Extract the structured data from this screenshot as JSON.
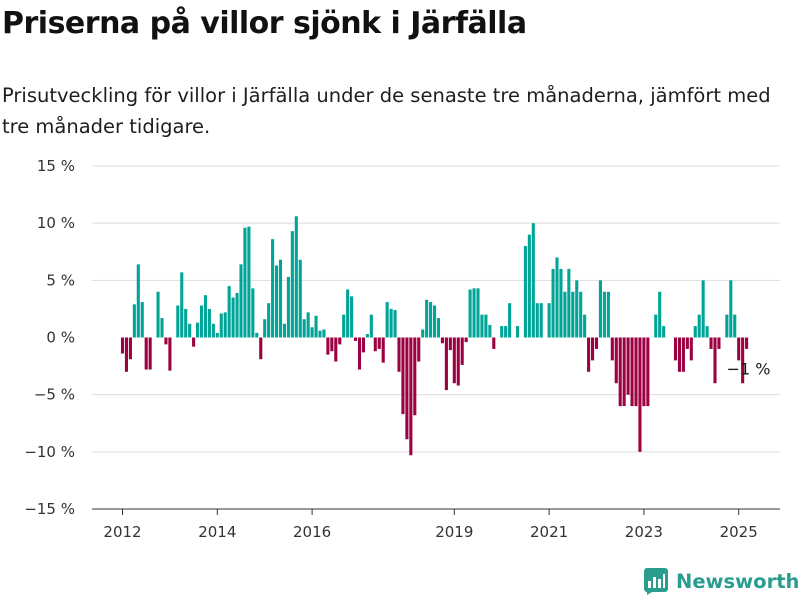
{
  "title": "Priserna på villor sjönk i Järfälla",
  "subtitle": "Prisutveckling för villor i Järfälla under de senaste tre månaderna, jämfört med tre månader tidigare.",
  "brand": {
    "name": "Newsworthy",
    "color": "#2a9d8f"
  },
  "colors": {
    "positive": "#00a597",
    "negative": "#9c0142",
    "grid": "#dddddd",
    "axis": "#333333"
  },
  "annotation": {
    "text": "−1 %"
  },
  "chart_data": {
    "type": "bar",
    "x_unit": "month",
    "ylim": [
      -15,
      15
    ],
    "y_ticks": [
      {
        "value": 15,
        "label": "15 %"
      },
      {
        "value": 10,
        "label": "10 %"
      },
      {
        "value": 5,
        "label": "5 %"
      },
      {
        "value": 0,
        "label": "0 %"
      },
      {
        "value": -5,
        "label": "−5 %"
      },
      {
        "value": -10,
        "label": "−10 %"
      },
      {
        "value": -15,
        "label": "−15 %"
      }
    ],
    "x_ticks": [
      {
        "value": "2012-01",
        "label": "2012"
      },
      {
        "value": "2014-01",
        "label": "2014"
      },
      {
        "value": "2016-01",
        "label": "2016"
      },
      {
        "value": "2019-01",
        "label": "2019"
      },
      {
        "value": "2021-01",
        "label": "2021"
      },
      {
        "value": "2023-01",
        "label": "2023"
      },
      {
        "value": "2025-01",
        "label": "2025"
      }
    ],
    "grid": true,
    "legend": false,
    "bars": [
      {
        "x": "2012-01",
        "y": -1.4
      },
      {
        "x": "2012-02",
        "y": -3
      },
      {
        "x": "2012-03",
        "y": -1.9
      },
      {
        "x": "2012-04",
        "y": 2.9
      },
      {
        "x": "2012-05",
        "y": 6.4
      },
      {
        "x": "2012-06",
        "y": 3.1
      },
      {
        "x": "2012-07",
        "y": -2.8
      },
      {
        "x": "2012-08",
        "y": -2.8
      },
      {
        "x": "2012-10",
        "y": 4
      },
      {
        "x": "2012-11",
        "y": 1.7
      },
      {
        "x": "2012-12",
        "y": -0.6
      },
      {
        "x": "2013-01",
        "y": -2.9
      },
      {
        "x": "2013-03",
        "y": 2.8
      },
      {
        "x": "2013-04",
        "y": 5.7
      },
      {
        "x": "2013-05",
        "y": 2.5
      },
      {
        "x": "2013-06",
        "y": 1.2
      },
      {
        "x": "2013-07",
        "y": -0.8
      },
      {
        "x": "2013-08",
        "y": 1.3
      },
      {
        "x": "2013-09",
        "y": 2.8
      },
      {
        "x": "2013-10",
        "y": 3.7
      },
      {
        "x": "2013-11",
        "y": 2.5
      },
      {
        "x": "2013-12",
        "y": 1.2
      },
      {
        "x": "2014-01",
        "y": 0.4
      },
      {
        "x": "2014-02",
        "y": 2.1
      },
      {
        "x": "2014-03",
        "y": 2.2
      },
      {
        "x": "2014-04",
        "y": 4.5
      },
      {
        "x": "2014-05",
        "y": 3.5
      },
      {
        "x": "2014-06",
        "y": 3.9
      },
      {
        "x": "2014-07",
        "y": 6.4
      },
      {
        "x": "2014-08",
        "y": 9.6
      },
      {
        "x": "2014-09",
        "y": 9.7
      },
      {
        "x": "2014-10",
        "y": 4.3
      },
      {
        "x": "2014-11",
        "y": 0.4
      },
      {
        "x": "2014-12",
        "y": -1.9
      },
      {
        "x": "2015-01",
        "y": 1.6
      },
      {
        "x": "2015-02",
        "y": 3
      },
      {
        "x": "2015-03",
        "y": 8.6
      },
      {
        "x": "2015-04",
        "y": 6.3
      },
      {
        "x": "2015-05",
        "y": 6.8
      },
      {
        "x": "2015-06",
        "y": 1.2
      },
      {
        "x": "2015-07",
        "y": 5.3
      },
      {
        "x": "2015-08",
        "y": 9.3
      },
      {
        "x": "2015-09",
        "y": 10.6
      },
      {
        "x": "2015-10",
        "y": 6.8
      },
      {
        "x": "2015-11",
        "y": 1.6
      },
      {
        "x": "2015-12",
        "y": 2.2
      },
      {
        "x": "2016-01",
        "y": 0.9
      },
      {
        "x": "2016-02",
        "y": 1.9
      },
      {
        "x": "2016-03",
        "y": 0.6
      },
      {
        "x": "2016-04",
        "y": 0.7
      },
      {
        "x": "2016-05",
        "y": -1.5
      },
      {
        "x": "2016-06",
        "y": -1.2
      },
      {
        "x": "2016-07",
        "y": -2.1
      },
      {
        "x": "2016-08",
        "y": -0.6
      },
      {
        "x": "2016-09",
        "y": 2
      },
      {
        "x": "2016-10",
        "y": 4.2
      },
      {
        "x": "2016-11",
        "y": 3.6
      },
      {
        "x": "2016-12",
        "y": -0.3
      },
      {
        "x": "2017-01",
        "y": -2.8
      },
      {
        "x": "2017-02",
        "y": -1.3
      },
      {
        "x": "2017-03",
        "y": 0.3
      },
      {
        "x": "2017-04",
        "y": 2
      },
      {
        "x": "2017-05",
        "y": -1.2
      },
      {
        "x": "2017-06",
        "y": -1
      },
      {
        "x": "2017-07",
        "y": -2.2
      },
      {
        "x": "2017-08",
        "y": 3.1
      },
      {
        "x": "2017-09",
        "y": 2.5
      },
      {
        "x": "2017-10",
        "y": 2.4
      },
      {
        "x": "2017-11",
        "y": -3
      },
      {
        "x": "2017-12",
        "y": -6.7
      },
      {
        "x": "2018-01",
        "y": -8.9
      },
      {
        "x": "2018-02",
        "y": -10.3
      },
      {
        "x": "2018-03",
        "y": -6.8
      },
      {
        "x": "2018-04",
        "y": -2.1
      },
      {
        "x": "2018-05",
        "y": 0.7
      },
      {
        "x": "2018-06",
        "y": 3.3
      },
      {
        "x": "2018-07",
        "y": 3.1
      },
      {
        "x": "2018-08",
        "y": 2.8
      },
      {
        "x": "2018-09",
        "y": 1.7
      },
      {
        "x": "2018-10",
        "y": -0.5
      },
      {
        "x": "2018-11",
        "y": -4.6
      },
      {
        "x": "2018-12",
        "y": -1.1
      },
      {
        "x": "2019-01",
        "y": -4
      },
      {
        "x": "2019-02",
        "y": -4.2
      },
      {
        "x": "2019-03",
        "y": -2.4
      },
      {
        "x": "2019-04",
        "y": -0.4
      },
      {
        "x": "2019-05",
        "y": 4.2
      },
      {
        "x": "2019-06",
        "y": 4.3
      },
      {
        "x": "2019-07",
        "y": 4.3
      },
      {
        "x": "2019-08",
        "y": 2
      },
      {
        "x": "2019-09",
        "y": 2
      },
      {
        "x": "2019-10",
        "y": 1.1
      },
      {
        "x": "2019-11",
        "y": -1
      },
      {
        "x": "2020-01",
        "y": 1
      },
      {
        "x": "2020-02",
        "y": 1
      },
      {
        "x": "2020-03",
        "y": 3
      },
      {
        "x": "2020-05",
        "y": 1
      },
      {
        "x": "2020-07",
        "y": 8
      },
      {
        "x": "2020-08",
        "y": 9
      },
      {
        "x": "2020-09",
        "y": 10
      },
      {
        "x": "2020-10",
        "y": 3
      },
      {
        "x": "2020-11",
        "y": 3
      },
      {
        "x": "2021-01",
        "y": 3
      },
      {
        "x": "2021-02",
        "y": 6
      },
      {
        "x": "2021-03",
        "y": 7
      },
      {
        "x": "2021-04",
        "y": 6
      },
      {
        "x": "2021-05",
        "y": 4
      },
      {
        "x": "2021-06",
        "y": 6
      },
      {
        "x": "2021-07",
        "y": 4
      },
      {
        "x": "2021-08",
        "y": 5
      },
      {
        "x": "2021-09",
        "y": 4
      },
      {
        "x": "2021-10",
        "y": 2
      },
      {
        "x": "2021-11",
        "y": -3
      },
      {
        "x": "2021-12",
        "y": -2
      },
      {
        "x": "2022-01",
        "y": -1
      },
      {
        "x": "2022-02",
        "y": 5
      },
      {
        "x": "2022-03",
        "y": 4
      },
      {
        "x": "2022-04",
        "y": 4
      },
      {
        "x": "2022-05",
        "y": -2
      },
      {
        "x": "2022-06",
        "y": -4
      },
      {
        "x": "2022-07",
        "y": -6
      },
      {
        "x": "2022-08",
        "y": -6
      },
      {
        "x": "2022-09",
        "y": -5
      },
      {
        "x": "2022-10",
        "y": -6
      },
      {
        "x": "2022-11",
        "y": -6
      },
      {
        "x": "2022-12",
        "y": -10
      },
      {
        "x": "2023-01",
        "y": -6
      },
      {
        "x": "2023-02",
        "y": -6
      },
      {
        "x": "2023-04",
        "y": 2
      },
      {
        "x": "2023-05",
        "y": 4
      },
      {
        "x": "2023-06",
        "y": 1
      },
      {
        "x": "2023-09",
        "y": -2
      },
      {
        "x": "2023-10",
        "y": -3
      },
      {
        "x": "2023-11",
        "y": -3
      },
      {
        "x": "2023-12",
        "y": -1
      },
      {
        "x": "2024-01",
        "y": -2
      },
      {
        "x": "2024-02",
        "y": 1
      },
      {
        "x": "2024-03",
        "y": 2
      },
      {
        "x": "2024-04",
        "y": 5
      },
      {
        "x": "2024-05",
        "y": 1
      },
      {
        "x": "2024-06",
        "y": -1
      },
      {
        "x": "2024-07",
        "y": -4
      },
      {
        "x": "2024-08",
        "y": -1
      },
      {
        "x": "2024-10",
        "y": 2
      },
      {
        "x": "2024-11",
        "y": 5
      },
      {
        "x": "2024-12",
        "y": 2
      },
      {
        "x": "2025-01",
        "y": -2
      },
      {
        "x": "2025-02",
        "y": -4
      },
      {
        "x": "2025-03",
        "y": -1
      }
    ]
  }
}
